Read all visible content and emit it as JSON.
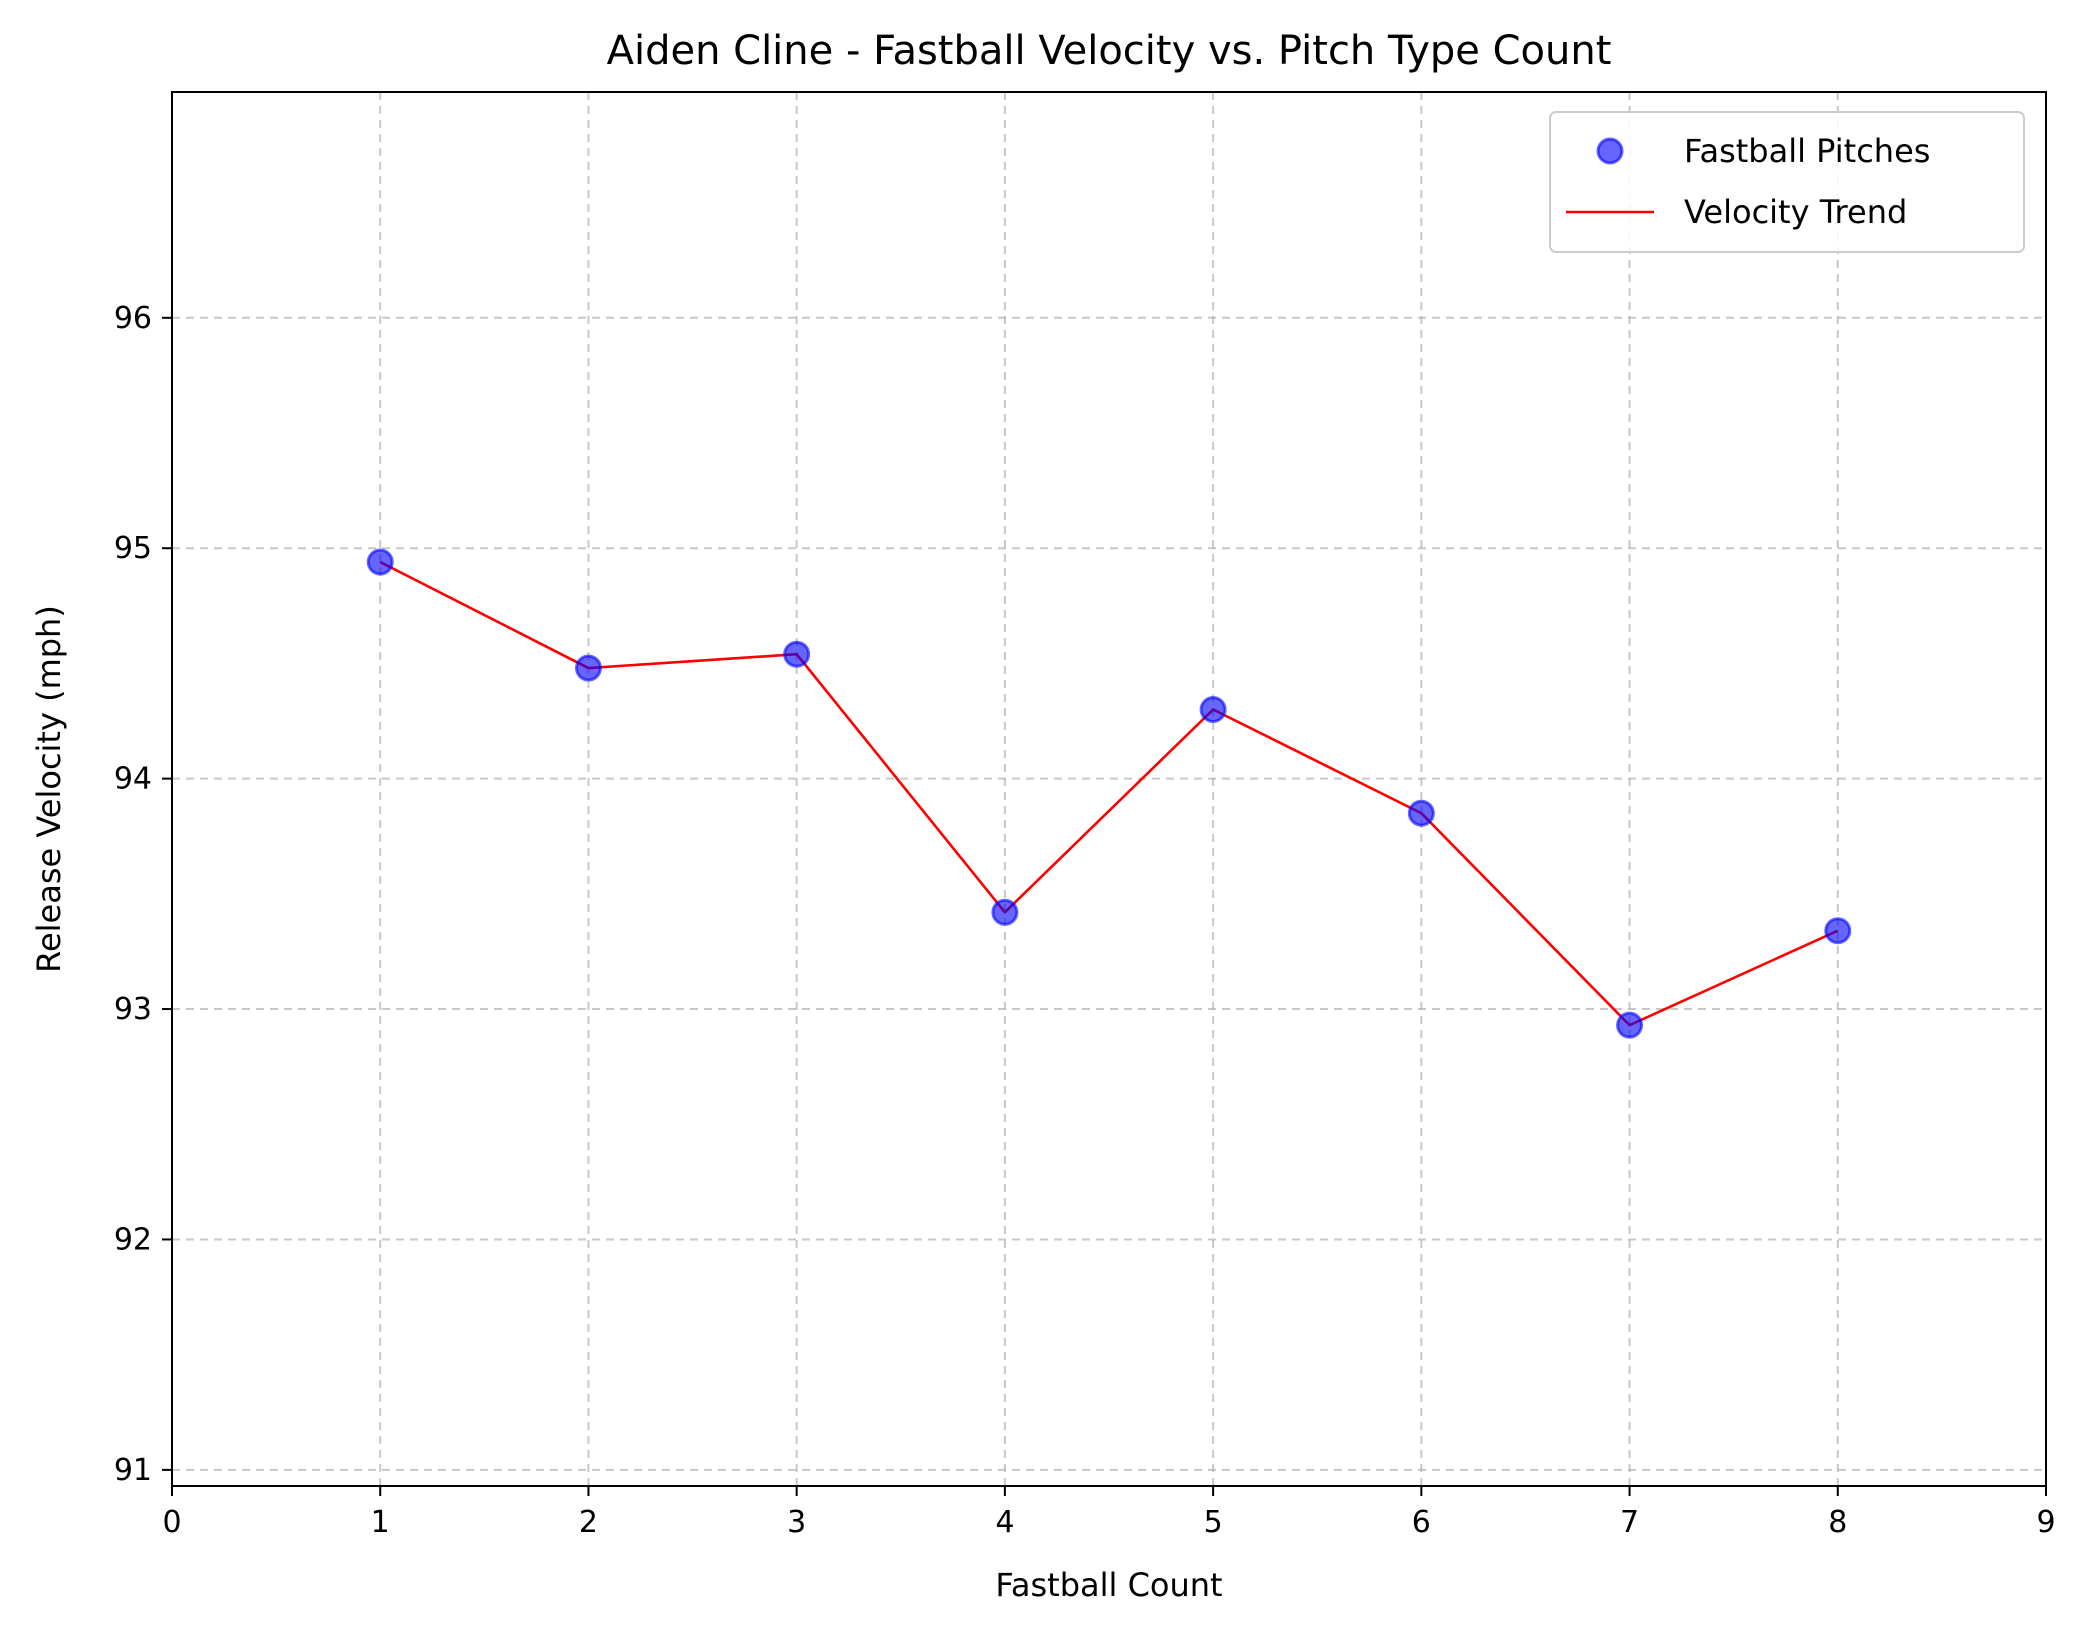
{
  "chart_data": {
    "type": "scatter",
    "title": "Aiden Cline - Fastball Velocity vs. Pitch Type Count",
    "xlabel": "Fastball Count",
    "ylabel": "Release Velocity (mph)",
    "xlim": [
      0,
      9
    ],
    "ylim": [
      90.93,
      96.98
    ],
    "xticks": [
      0,
      1,
      2,
      3,
      4,
      5,
      6,
      7,
      8,
      9
    ],
    "yticks": [
      91,
      92,
      93,
      94,
      95,
      96
    ],
    "grid": true,
    "legend_position": "top-right",
    "series": [
      {
        "name": "Fastball Pitches",
        "kind": "scatter",
        "color": "#0000ff",
        "x": [
          1,
          2,
          3,
          4,
          5,
          6,
          7,
          8
        ],
        "y": [
          94.94,
          94.48,
          94.54,
          93.42,
          94.3,
          93.85,
          92.93,
          93.34
        ]
      },
      {
        "name": "Velocity Trend",
        "kind": "line",
        "color": "#ff0000",
        "x": [
          1,
          2,
          3,
          4,
          5,
          6,
          7,
          8
        ],
        "y": [
          94.94,
          94.48,
          94.54,
          93.42,
          94.3,
          93.85,
          92.93,
          93.34
        ]
      }
    ]
  }
}
